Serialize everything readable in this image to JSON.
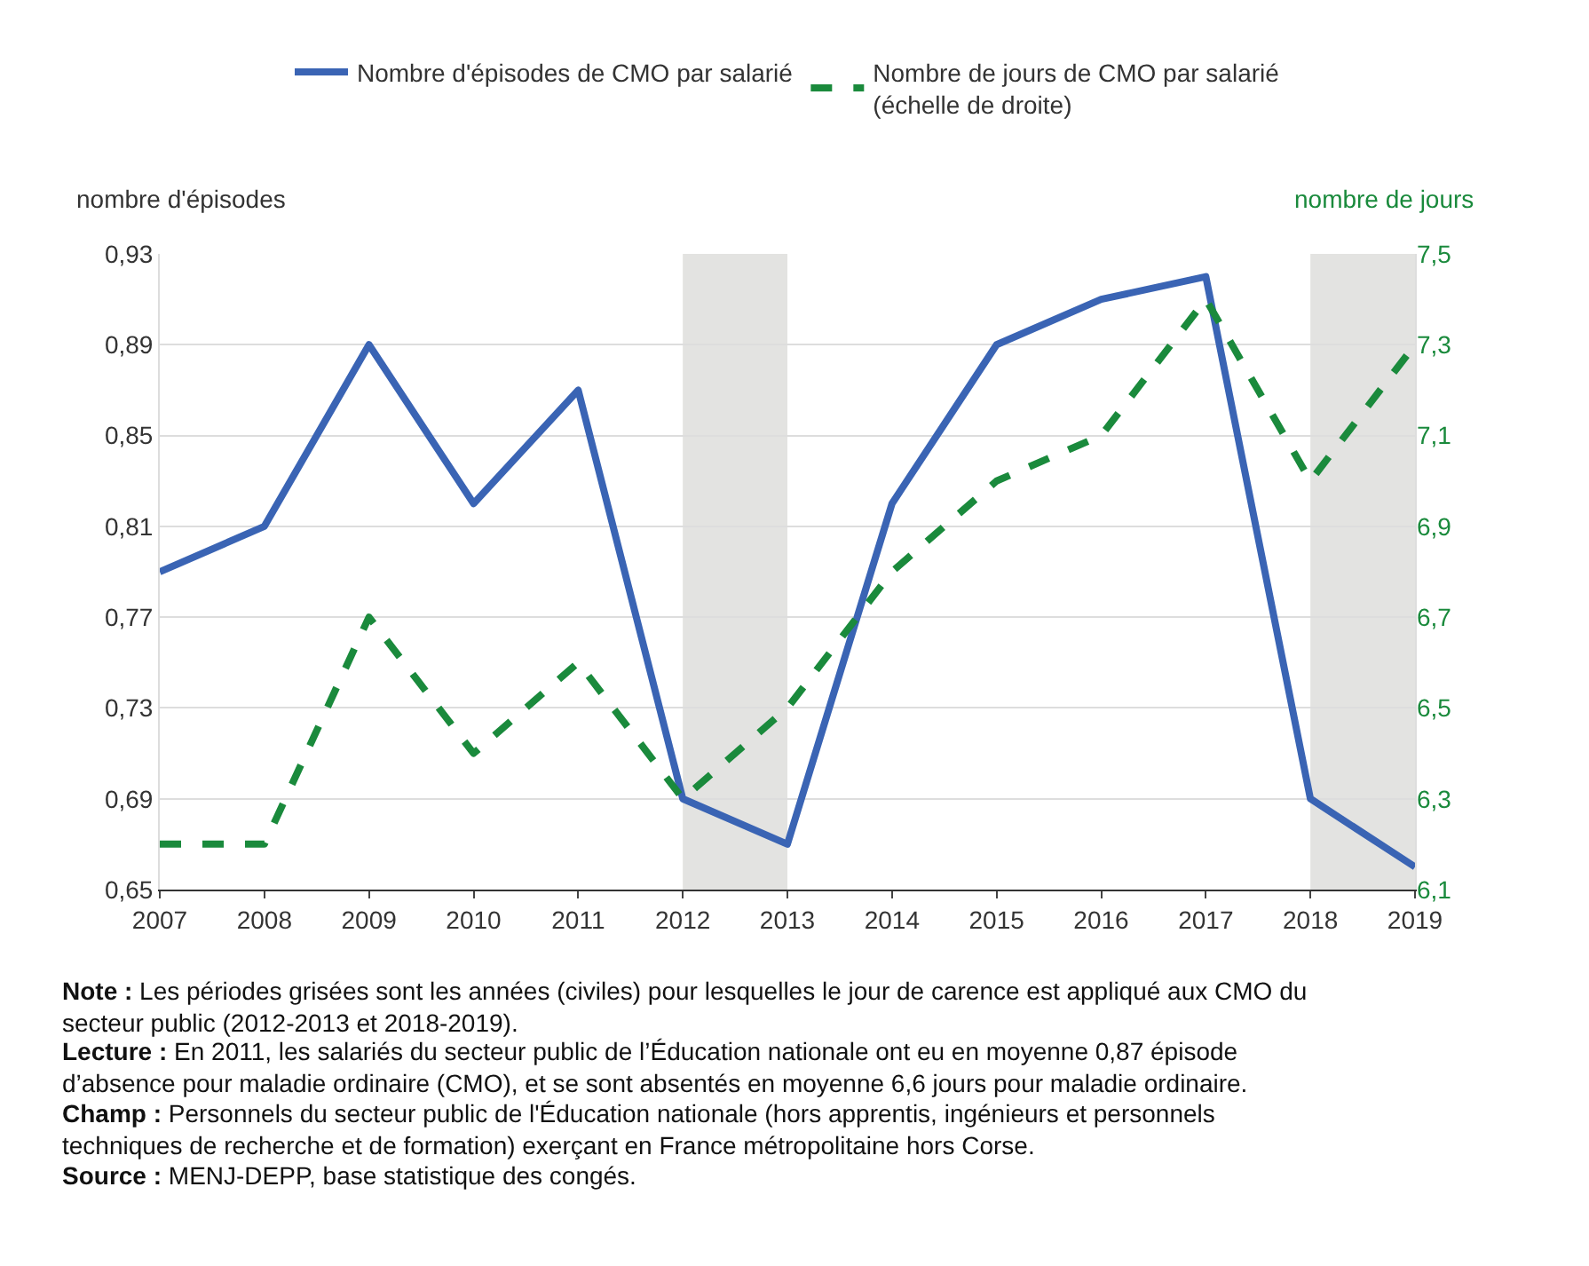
{
  "chart_data": {
    "type": "line",
    "x": [
      2007,
      2008,
      2009,
      2010,
      2011,
      2012,
      2013,
      2014,
      2015,
      2016,
      2017,
      2018,
      2019
    ],
    "series": [
      {
        "name": "Nombre d'épisodes de CMO par salarié",
        "color": "#3a64b4",
        "line_style": "solid",
        "values": [
          0.79,
          0.81,
          0.89,
          0.82,
          0.87,
          0.69,
          0.67,
          0.82,
          0.89,
          0.91,
          0.92,
          0.69,
          0.66
        ]
      },
      {
        "name": "Nombre de jours de CMO par salarié\n(échelle de droite)",
        "color": "#1a8a3c",
        "line_style": "dashed",
        "axis": "y2",
        "values": [
          6.2,
          6.2,
          6.7,
          6.4,
          6.6,
          6.3,
          6.5,
          6.8,
          7.0,
          7.1,
          7.4,
          7.0,
          7.3
        ]
      }
    ],
    "xlim": [
      2007,
      2019
    ],
    "xticks": [
      2007,
      2008,
      2009,
      2010,
      2011,
      2012,
      2013,
      2014,
      2015,
      2016,
      2017,
      2018,
      2019
    ],
    "ylim": [
      0.65,
      0.93
    ],
    "yticks": [
      {
        "value": 0.65,
        "label": "0,65"
      },
      {
        "value": 0.69,
        "label": "0,69"
      },
      {
        "value": 0.73,
        "label": "0,73"
      },
      {
        "value": 0.77,
        "label": "0,77"
      },
      {
        "value": 0.81,
        "label": "0,81"
      },
      {
        "value": 0.85,
        "label": "0,85"
      },
      {
        "value": 0.89,
        "label": "0,89"
      },
      {
        "value": 0.93,
        "label": "0,93"
      }
    ],
    "y2lim": [
      6.1,
      7.5
    ],
    "y2ticks": [
      {
        "value": 6.1,
        "label": "6,1"
      },
      {
        "value": 6.3,
        "label": "6,3"
      },
      {
        "value": 6.5,
        "label": "6,5"
      },
      {
        "value": 6.7,
        "label": "6,7"
      },
      {
        "value": 6.9,
        "label": "6,9"
      },
      {
        "value": 7.1,
        "label": "7,1"
      },
      {
        "value": 7.3,
        "label": "7,3"
      },
      {
        "value": 7.5,
        "label": "7,5"
      }
    ],
    "ylabel": "nombre d'épisodes",
    "y2label": "nombre de jours",
    "bands": [
      {
        "axis": "x",
        "from": 2012,
        "to": 2013,
        "color": "#e3e3e1"
      },
      {
        "axis": "x",
        "from": 2018,
        "to": 2019,
        "color": "#e3e3e1"
      }
    ],
    "grid": "y",
    "legend": "top",
    "marker": "none",
    "annotations": [
      "Note : Les périodes grisées sont les années (civiles) pour lesquelles le jour de carence est appliqué aux CMO du\nsecteur public (2012-2013 et 2018-2019).",
      "Lecture : En 2011, les salariés du secteur public de l’Éducation nationale ont eu en moyenne 0,87 épisode\nd’absence pour maladie ordinaire (CMO), et se sont absentés en moyenne 6,6 jours pour maladie ordinaire.",
      "Champ : Personnels du secteur public de l'Éducation nationale (hors apprentis, ingénieurs et personnels\ntechniques de recherche et de formation) exerçant en France métropolitaine hors Corse.",
      "Source : MENJ-DEPP, base statistique des congés."
    ]
  }
}
